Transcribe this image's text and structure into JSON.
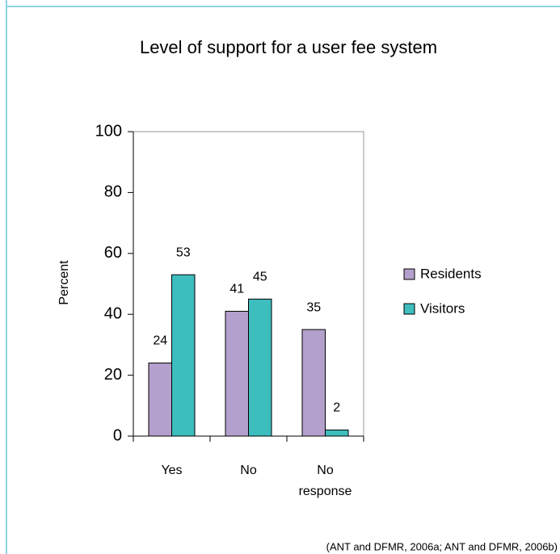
{
  "chart_data": {
    "type": "bar",
    "title": "Level of support for a user fee system",
    "y_label": "Percent",
    "categories": [
      "Yes",
      "No",
      "No response"
    ],
    "series": [
      {
        "name": "Residents",
        "color": "#b4a0cc",
        "values": [
          24,
          41,
          35
        ]
      },
      {
        "name": "Visitors",
        "color": "#3dbdbd",
        "values": [
          53,
          45,
          2
        ]
      }
    ],
    "ylim": [
      0,
      100
    ],
    "yticks": [
      0,
      20,
      40,
      60,
      80,
      100
    ],
    "legend": "right",
    "source": "(ANT and DFMR, 2006a; ANT and DFMR, 2006b)"
  }
}
